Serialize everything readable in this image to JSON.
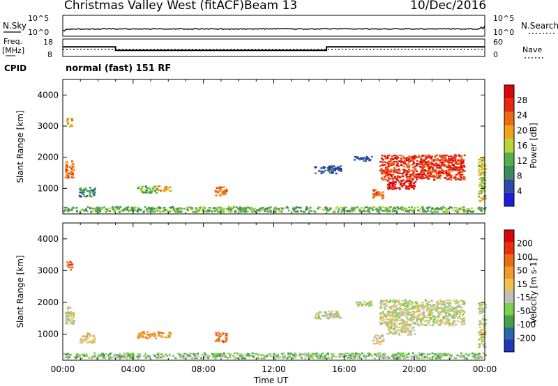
{
  "header": {
    "station": "Christmas Valley West (fitACF)",
    "beam": "Beam 13",
    "date": "10/Dec/2016",
    "mode": "normal (fast) 151 RF"
  },
  "labels": {
    "nsky": "N.Sky",
    "nsearch": "N.Search",
    "freq": "Freq.",
    "freq_unit": "[MHz]",
    "nave": "Nave",
    "cpid": "CPID",
    "noise_top": "10^5",
    "noise_bottom": "10^0",
    "xlabel": "Time UT"
  },
  "colors": {
    "power": [
      "#1f1fd8",
      "#2a4aa8",
      "#3f8a5a",
      "#56b04a",
      "#b8d43a",
      "#f2a21a",
      "#f06a14",
      "#e82a10",
      "#d80808"
    ],
    "velocity": [
      "#1f38b8",
      "#2a66a8",
      "#4aa04a",
      "#7ed04a",
      "#c0c0b8",
      "#f2c050",
      "#f09a28",
      "#f06a14",
      "#e83010",
      "#d80808"
    ]
  },
  "chart_data": [
    {
      "type": "line",
      "name": "noise",
      "ylabel_left": "N.Sky",
      "ylabel_right": "N.Search",
      "ticks_left": [
        "10^5",
        "10^0"
      ],
      "ticks_right": [
        "10^5",
        "10^0"
      ],
      "x": [
        "00:00",
        "24:00"
      ]
    },
    {
      "type": "line",
      "name": "frequency",
      "ylabel": "Freq. [MHz]",
      "yticks": [
        8,
        18
      ],
      "ylabel_right": "Nave",
      "yticks_right": [
        0,
        60
      ],
      "steps": [
        {
          "from_h": 0,
          "to_h": 3,
          "freq_mhz": 13.5
        },
        {
          "from_h": 3,
          "to_h": 15,
          "freq_mhz": 11.5
        },
        {
          "from_h": 15,
          "to_h": 24,
          "freq_mhz": 13.5
        }
      ]
    },
    {
      "type": "heatmap",
      "name": "power",
      "ylabel": "Slant Range [km]",
      "yticks": [
        1000,
        2000,
        3000,
        4000
      ],
      "ylim": [
        180,
        4500
      ],
      "colorbar_label": "Power [dB]",
      "colorbar_ticks": [
        4,
        8,
        12,
        16,
        20,
        24,
        28
      ]
    },
    {
      "type": "heatmap",
      "name": "velocity",
      "ylabel": "Slant Range [km]",
      "yticks": [
        1000,
        2000,
        3000,
        4000
      ],
      "ylim": [
        180,
        4500
      ],
      "colorbar_label": "Velocity [m s-1]",
      "colorbar_ticks": [
        "200",
        "100",
        "50",
        "15",
        "-15",
        "-50",
        "-100",
        "-200"
      ]
    }
  ],
  "xaxis": {
    "ticks": [
      "00:00",
      "04:00",
      "08:00",
      "12:00",
      "16:00",
      "20:00",
      "00:00"
    ],
    "xlim_hours": [
      0,
      24
    ]
  },
  "echoes": [
    {
      "t0": 0.1,
      "t1": 0.6,
      "r0": 1350,
      "r1": 1900,
      "p": 6,
      "v": 4
    },
    {
      "t0": 0.2,
      "t1": 0.5,
      "r0": 3000,
      "r1": 3300,
      "p": 5,
      "v": 8
    },
    {
      "t0": 0.9,
      "t1": 1.8,
      "r0": 750,
      "r1": 1050,
      "p": 2,
      "v": 5
    },
    {
      "t0": 4.2,
      "t1": 5.3,
      "r0": 880,
      "r1": 1100,
      "p": 3,
      "v": 6
    },
    {
      "t0": 5.3,
      "t1": 6.1,
      "r0": 920,
      "r1": 1100,
      "p": 5,
      "v": 6
    },
    {
      "t0": 8.6,
      "t1": 9.3,
      "r0": 780,
      "r1": 1080,
      "p": 6,
      "v": 7
    },
    {
      "t0": 14.3,
      "t1": 15.8,
      "r0": 1500,
      "r1": 1750,
      "p": 1,
      "v": 4
    },
    {
      "t0": 16.5,
      "t1": 17.6,
      "r0": 1900,
      "r1": 2050,
      "p": 1,
      "v": 4
    },
    {
      "t0": 18.0,
      "t1": 22.8,
      "r0": 1300,
      "r1": 2100,
      "p": 7,
      "v": 4
    },
    {
      "t0": 18.4,
      "t1": 20.0,
      "r0": 1000,
      "r1": 1300,
      "p": 8,
      "v": 4
    },
    {
      "t0": 17.6,
      "t1": 18.2,
      "r0": 700,
      "r1": 1000,
      "p": 6,
      "v": 5
    },
    {
      "t0": 23.6,
      "t1": 24.0,
      "r0": 600,
      "r1": 2000,
      "p": 4,
      "v": 4
    },
    {
      "t0": 0.0,
      "t1": 24.0,
      "r0": 260,
      "r1": 430,
      "p": 3,
      "v": 3
    }
  ]
}
